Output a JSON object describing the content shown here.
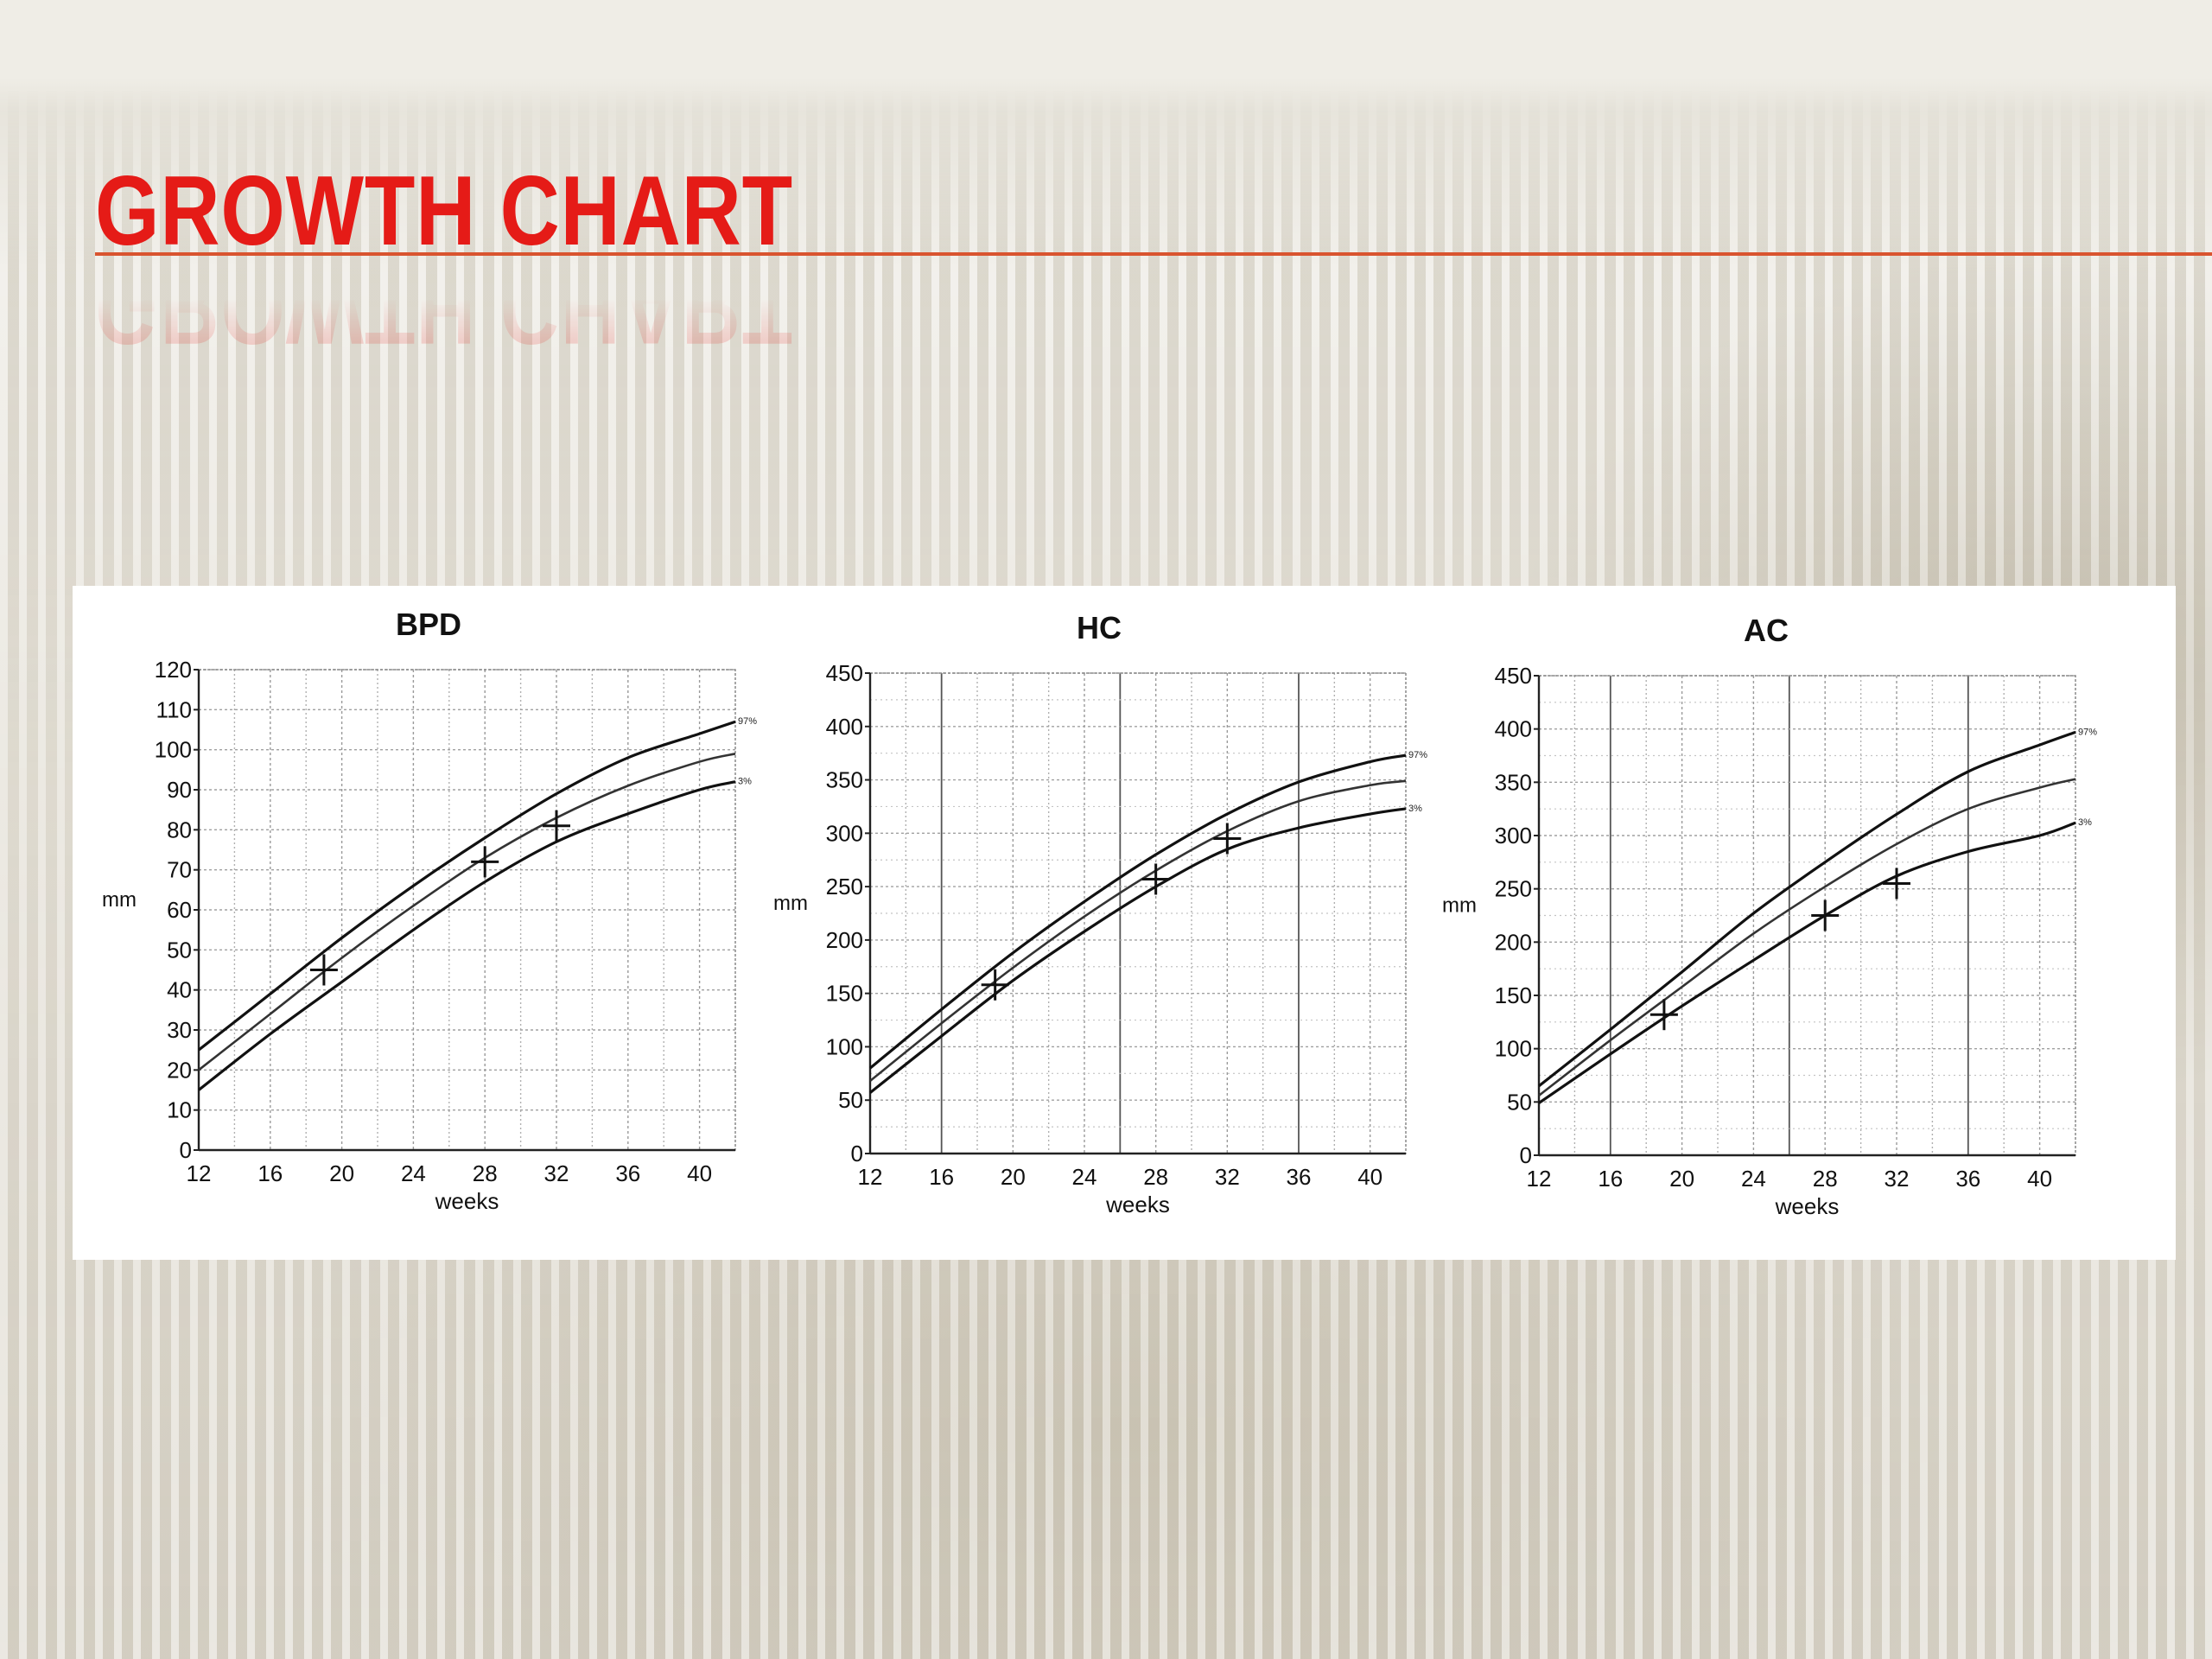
{
  "slide": {
    "title": "Growth chart"
  },
  "chart_data": [
    {
      "type": "line",
      "title": "BPD",
      "xlabel": "weeks",
      "ylabel": "mm",
      "xlim": [
        12,
        42
      ],
      "ylim": [
        0,
        120
      ],
      "xticks": [
        12,
        16,
        20,
        24,
        28,
        32,
        36,
        40
      ],
      "yticks": [
        0,
        10,
        20,
        30,
        40,
        50,
        60,
        70,
        80,
        90,
        100,
        110,
        120
      ],
      "grid": true,
      "series": [
        {
          "name": "97%",
          "x": [
            12,
            16,
            20,
            24,
            28,
            32,
            36,
            40,
            42
          ],
          "y": [
            25,
            39,
            53,
            66,
            78,
            89,
            98,
            104,
            107
          ]
        },
        {
          "name": "",
          "x": [
            12,
            16,
            20,
            24,
            28,
            32,
            36,
            40,
            42
          ],
          "y": [
            20,
            34,
            48,
            61,
            73,
            83,
            91,
            97,
            99
          ]
        },
        {
          "name": "3%",
          "x": [
            12,
            16,
            20,
            24,
            28,
            32,
            36,
            40,
            42
          ],
          "y": [
            15,
            29,
            42,
            55,
            67,
            77,
            84,
            90,
            92
          ]
        }
      ],
      "points": [
        {
          "x": 19,
          "y": 45
        },
        {
          "x": 28,
          "y": 72
        },
        {
          "x": 32,
          "y": 81
        }
      ]
    },
    {
      "type": "line",
      "title": "HC",
      "xlabel": "weeks",
      "ylabel": "mm",
      "xlim": [
        12,
        42
      ],
      "ylim": [
        0,
        450
      ],
      "xticks": [
        12,
        16,
        20,
        24,
        28,
        32,
        36,
        40
      ],
      "yticks": [
        0,
        50,
        100,
        150,
        200,
        250,
        300,
        350,
        400,
        450
      ],
      "grid": true,
      "series": [
        {
          "name": "97%",
          "x": [
            12,
            16,
            20,
            24,
            28,
            32,
            36,
            40,
            42
          ],
          "y": [
            80,
            135,
            188,
            236,
            280,
            318,
            348,
            367,
            373
          ]
        },
        {
          "name": "",
          "x": [
            12,
            16,
            20,
            24,
            28,
            32,
            36,
            40,
            42
          ],
          "y": [
            68,
            122,
            174,
            222,
            265,
            302,
            330,
            345,
            349
          ]
        },
        {
          "name": "3%",
          "x": [
            12,
            16,
            20,
            24,
            28,
            32,
            36,
            40,
            42
          ],
          "y": [
            57,
            110,
            162,
            208,
            250,
            285,
            305,
            318,
            323
          ]
        }
      ],
      "points": [
        {
          "x": 19,
          "y": 158
        },
        {
          "x": 28,
          "y": 257
        },
        {
          "x": 32,
          "y": 295
        }
      ]
    },
    {
      "type": "line",
      "title": "AC",
      "xlabel": "weeks",
      "ylabel": "mm",
      "xlim": [
        12,
        42
      ],
      "ylim": [
        0,
        450
      ],
      "xticks": [
        12,
        16,
        20,
        24,
        28,
        32,
        36,
        40
      ],
      "yticks": [
        0,
        50,
        100,
        150,
        200,
        250,
        300,
        350,
        400,
        450
      ],
      "grid": true,
      "series": [
        {
          "name": "97%",
          "x": [
            12,
            16,
            20,
            24,
            28,
            32,
            36,
            40,
            42
          ],
          "y": [
            65,
            118,
            172,
            227,
            275,
            320,
            360,
            385,
            397
          ]
        },
        {
          "name": "",
          "x": [
            12,
            16,
            20,
            24,
            28,
            32,
            36,
            40,
            42
          ],
          "y": [
            56,
            108,
            158,
            208,
            252,
            292,
            325,
            345,
            353
          ]
        },
        {
          "name": "3%",
          "x": [
            12,
            16,
            20,
            24,
            28,
            32,
            36,
            40,
            42
          ],
          "y": [
            49,
            95,
            140,
            183,
            225,
            262,
            285,
            300,
            312
          ]
        }
      ],
      "points": [
        {
          "x": 19,
          "y": 132
        },
        {
          "x": 28,
          "y": 225
        },
        {
          "x": 32,
          "y": 255
        }
      ]
    }
  ]
}
